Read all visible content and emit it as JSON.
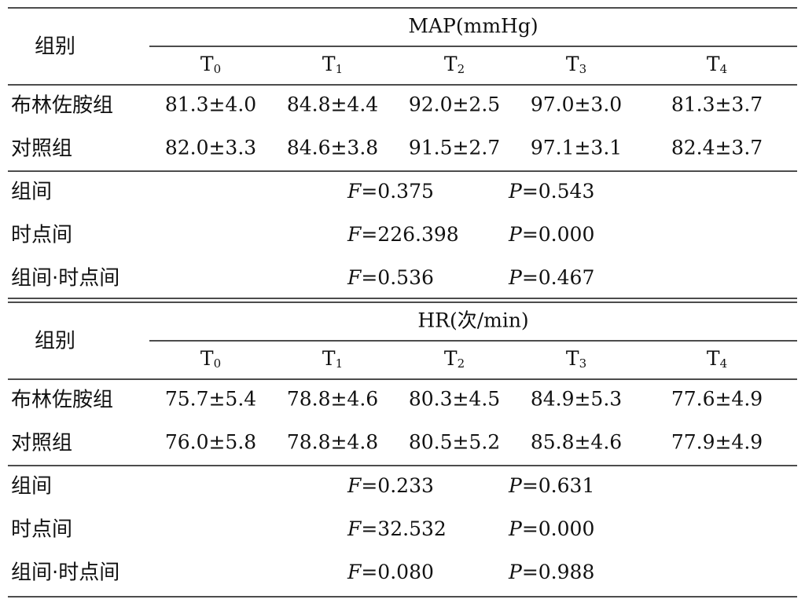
{
  "sections": [
    {
      "group_header": "组别",
      "title": "MAP(mmHg)",
      "timepoints": [
        {
          "letter": "T",
          "sub": "0"
        },
        {
          "letter": "T",
          "sub": "1"
        },
        {
          "letter": "T",
          "sub": "2"
        },
        {
          "letter": "T",
          "sub": "3"
        },
        {
          "letter": "T",
          "sub": "4"
        }
      ],
      "rows": [
        {
          "group": "布林佐胺组",
          "values": [
            "81.3±4.0",
            "84.8±4.4",
            "92.0±2.5",
            "97.0±3.0",
            "81.3±3.7"
          ]
        },
        {
          "group": "对照组",
          "values": [
            "82.0±3.3",
            "84.6±3.8",
            "91.5±2.7",
            "97.1±3.1",
            "82.4±3.7"
          ]
        }
      ],
      "stats": [
        {
          "label": "组间",
          "f": {
            "symbol": "F",
            "text": "=0.375"
          },
          "p": {
            "symbol": "P",
            "text": "=0.543"
          }
        },
        {
          "label": "时点间",
          "f": {
            "symbol": "F",
            "text": "=226.398"
          },
          "p": {
            "symbol": "P",
            "text": "=0.000"
          }
        },
        {
          "label": "组间·时点间",
          "f": {
            "symbol": "F",
            "text": "=0.536"
          },
          "p": {
            "symbol": "P",
            "text": "=0.467"
          }
        }
      ]
    },
    {
      "group_header": "组别",
      "title": "HR(次/min)",
      "timepoints": [
        {
          "letter": "T",
          "sub": "0"
        },
        {
          "letter": "T",
          "sub": "1"
        },
        {
          "letter": "T",
          "sub": "2"
        },
        {
          "letter": "T",
          "sub": "3"
        },
        {
          "letter": "T",
          "sub": "4"
        }
      ],
      "rows": [
        {
          "group": "布林佐胺组",
          "values": [
            "75.7±5.4",
            "78.8±4.6",
            "80.3±4.5",
            "84.9±5.3",
            "77.6±4.9"
          ]
        },
        {
          "group": "对照组",
          "values": [
            "76.0±5.8",
            "78.8±4.8",
            "80.5±5.2",
            "85.8±4.6",
            "77.9±4.9"
          ]
        }
      ],
      "stats": [
        {
          "label": "组间",
          "f": {
            "symbol": "F",
            "text": "=0.233"
          },
          "p": {
            "symbol": "P",
            "text": "=0.631"
          }
        },
        {
          "label": "时点间",
          "f": {
            "symbol": "F",
            "text": "=32.532"
          },
          "p": {
            "symbol": "P",
            "text": "=0.000"
          }
        },
        {
          "label": "组间·时点间",
          "f": {
            "symbol": "F",
            "text": "=0.080"
          },
          "p": {
            "symbol": "P",
            "text": "=0.988"
          }
        }
      ]
    }
  ]
}
